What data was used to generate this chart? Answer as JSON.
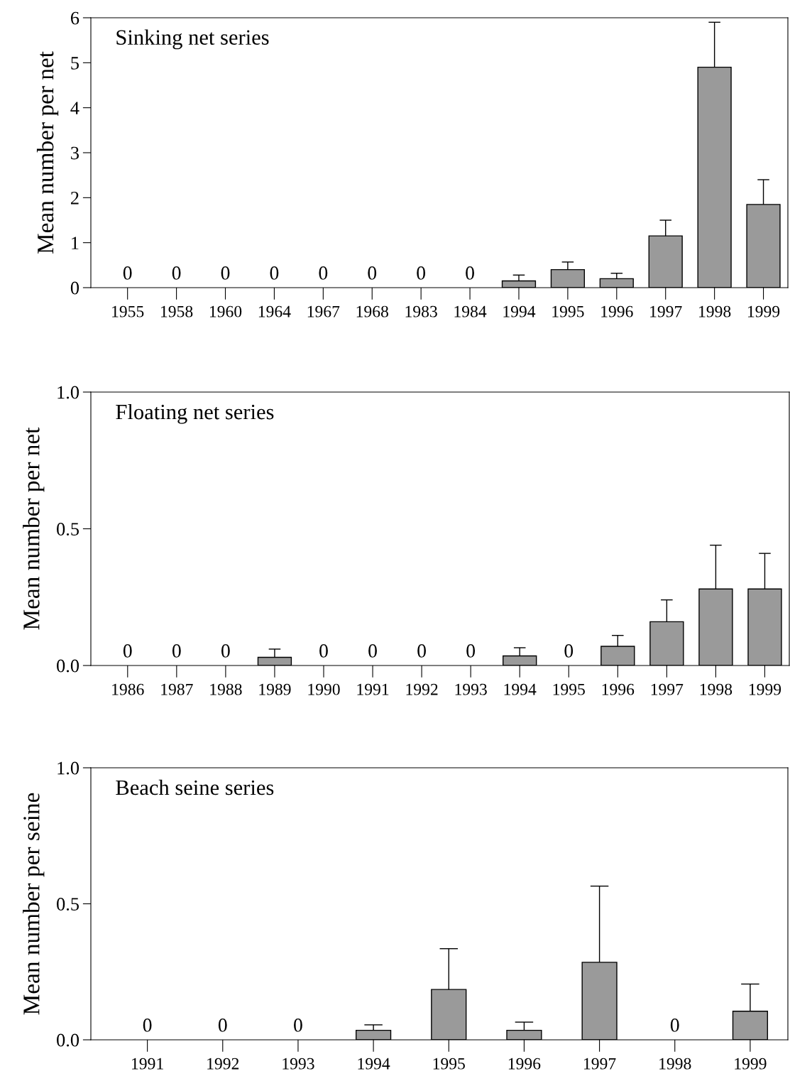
{
  "chart_data": [
    {
      "type": "bar",
      "title": "Sinking net series",
      "ylabel": "Mean number per net",
      "categories": [
        "1955",
        "1958",
        "1960",
        "1964",
        "1967",
        "1968",
        "1983",
        "1984",
        "1994",
        "1995",
        "1996",
        "1997",
        "1998",
        "1999"
      ],
      "values": [
        0,
        0,
        0,
        0,
        0,
        0,
        0,
        0,
        0.15,
        0.4,
        0.2,
        1.15,
        4.9,
        1.85
      ],
      "errors": [
        null,
        null,
        null,
        null,
        null,
        null,
        null,
        null,
        [
          0.15,
          0.28
        ],
        [
          0.4,
          0.57
        ],
        [
          0.2,
          0.32
        ],
        [
          1.15,
          1.5
        ],
        [
          4.9,
          5.9
        ],
        [
          1.85,
          2.4
        ]
      ],
      "value_labels": [
        "0",
        "0",
        "0",
        "0",
        "0",
        "0",
        "0",
        "0",
        null,
        null,
        null,
        null,
        null,
        null
      ],
      "color": "#9a9a9a",
      "ylim": [
        0,
        6
      ],
      "yticks": [
        0,
        1,
        2,
        3,
        4,
        5,
        6
      ],
      "grid": false,
      "legend": false
    },
    {
      "type": "bar",
      "title": "Floating net series",
      "ylabel": "Mean number per net",
      "categories": [
        "1986",
        "1987",
        "1988",
        "1989",
        "1990",
        "1991",
        "1992",
        "1993",
        "1994",
        "1995",
        "1996",
        "1997",
        "1998",
        "1999"
      ],
      "values": [
        0,
        0,
        0,
        0.03,
        0,
        0,
        0,
        0,
        0.035,
        0,
        0.07,
        0.16,
        0.28,
        0.28
      ],
      "errors": [
        null,
        null,
        null,
        [
          0.03,
          0.06
        ],
        null,
        null,
        null,
        null,
        [
          0.035,
          0.065
        ],
        null,
        [
          0.07,
          0.11
        ],
        [
          0.16,
          0.24
        ],
        [
          0.28,
          0.44
        ],
        [
          0.28,
          0.41
        ]
      ],
      "value_labels": [
        "0",
        "0",
        "0",
        null,
        "0",
        "0",
        "0",
        "0",
        null,
        "0",
        null,
        null,
        null,
        null
      ],
      "color": "#9a9a9a",
      "ylim": [
        0,
        1
      ],
      "yticks": [
        {
          "value": 0,
          "label": "0.0"
        },
        {
          "value": 0.5,
          "label": "0.5"
        },
        {
          "value": 1,
          "label": "1.0"
        }
      ],
      "grid": false,
      "legend": false
    },
    {
      "type": "bar",
      "title": "Beach seine series",
      "ylabel": "Mean number per seine",
      "categories": [
        "1991",
        "1992",
        "1993",
        "1994",
        "1995",
        "1996",
        "1997",
        "1998",
        "1999"
      ],
      "values": [
        0,
        0,
        0,
        0.035,
        0.185,
        0.035,
        0.285,
        0,
        0.105
      ],
      "errors": [
        null,
        null,
        null,
        [
          0.035,
          0.055
        ],
        [
          0.185,
          0.335
        ],
        [
          0.035,
          0.065
        ],
        [
          0.285,
          0.565
        ],
        null,
        [
          0.105,
          0.205
        ]
      ],
      "value_labels": [
        "0",
        "0",
        "0",
        null,
        null,
        null,
        null,
        "0",
        null
      ],
      "color": "#9a9a9a",
      "ylim": [
        0,
        1
      ],
      "yticks": [
        {
          "value": 0,
          "label": "0.0"
        },
        {
          "value": 0.5,
          "label": "0.5"
        },
        {
          "value": 1,
          "label": "1.0"
        }
      ],
      "grid": false,
      "legend": false
    }
  ]
}
